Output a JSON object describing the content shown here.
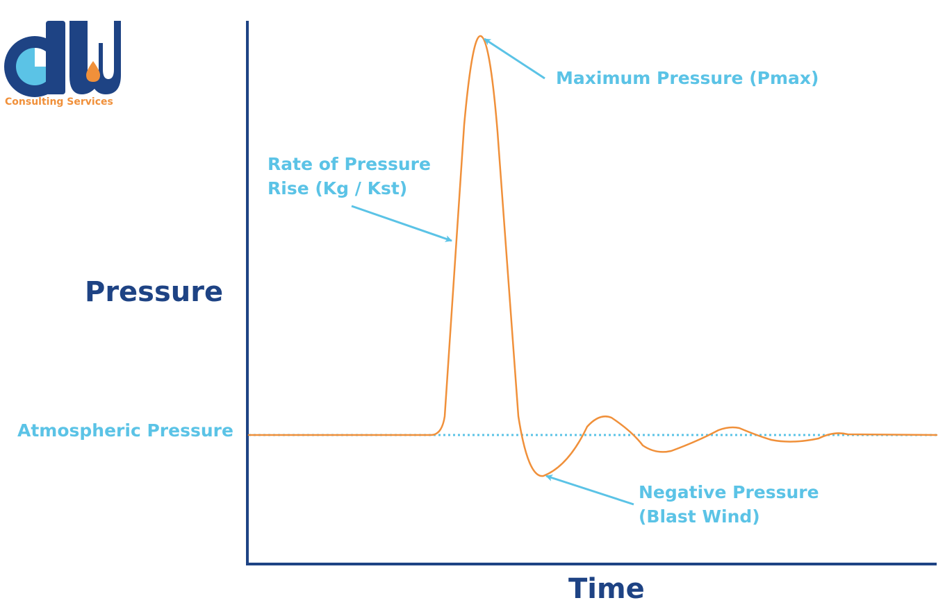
{
  "logo": {
    "text": "Consulting Services",
    "letters": "dw",
    "colors": {
      "blue": "#1e4384",
      "light_blue": "#5bc3e6",
      "orange": "#f0903a"
    }
  },
  "diagram": {
    "y_axis_label": "Pressure",
    "x_axis_label": "Time",
    "baseline_label": "Atmospheric Pressure",
    "annotations": {
      "pmax": [
        "Maximum Pressure (Pmax)"
      ],
      "rate": [
        "Rate of Pressure",
        "Rise (Kg / Kst)"
      ],
      "negative": [
        "Negative Pressure",
        "(Blast Wind)"
      ]
    },
    "colors": {
      "axis": "#1e4384",
      "curve": "#f0903a",
      "baseline": "#5bc3e6",
      "arrows": "#5bc3e6",
      "axis_labels": "#1e4384",
      "annotation_text": "#5bc3e6"
    }
  }
}
